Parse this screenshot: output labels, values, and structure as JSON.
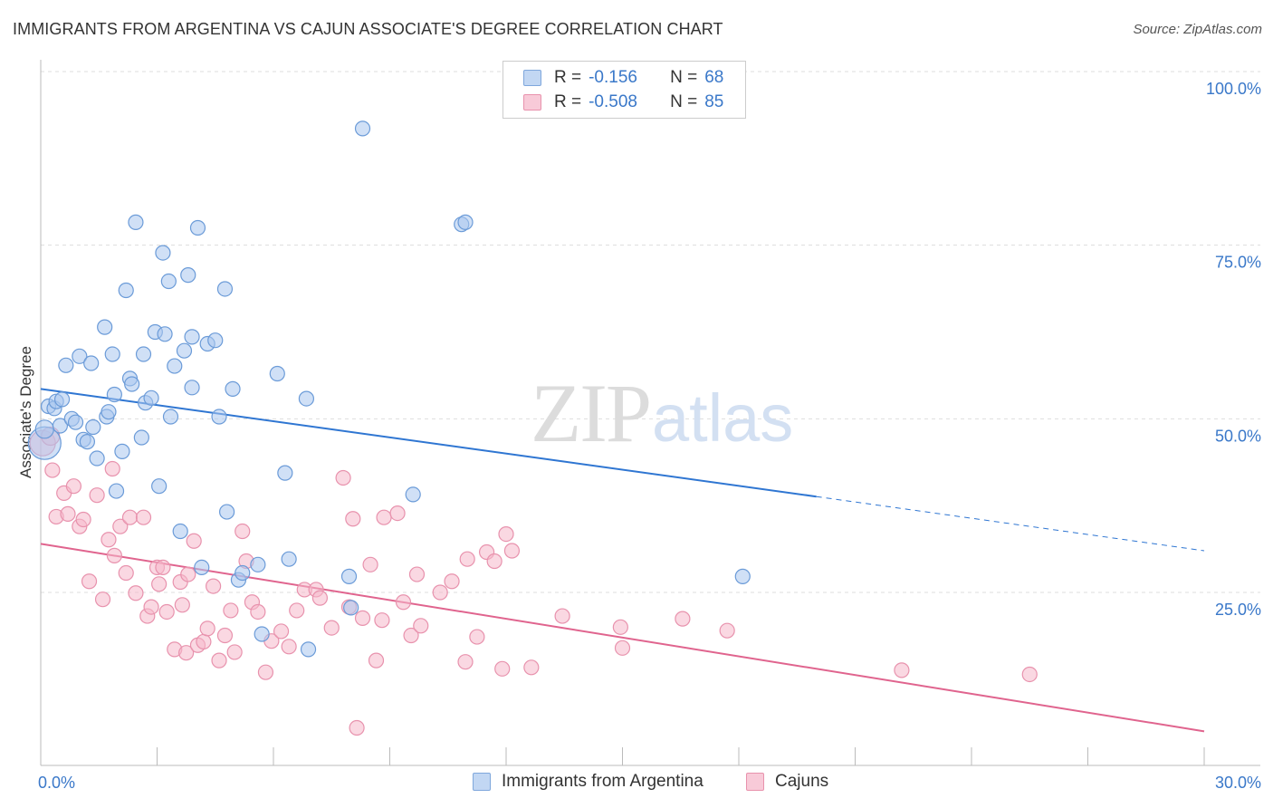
{
  "title": "IMMIGRANTS FROM ARGENTINA VS CAJUN ASSOCIATE'S DEGREE CORRELATION CHART",
  "source": "Source: ZipAtlas.com",
  "colors": {
    "blue_fill": "#a9c7ee",
    "blue_stroke": "#6b9bd8",
    "blue_line": "#2f76d2",
    "pink_fill": "#f5b8cb",
    "pink_stroke": "#e892ad",
    "pink_line": "#e0648e",
    "tick_label": "#3a78c9",
    "grid": "#dddddd"
  },
  "legend": {
    "r_label": "R =",
    "n_label": "N =",
    "series": [
      {
        "r": "-0.156",
        "n": "68"
      },
      {
        "r": "-0.508",
        "n": "85"
      }
    ]
  },
  "chart_data": {
    "type": "scatter",
    "title": "IMMIGRANTS FROM ARGENTINA VS CAJUN ASSOCIATE'S DEGREE CORRELATION CHART",
    "xlabel": "",
    "ylabel": "Associate's Degree",
    "xlim": [
      0,
      30
    ],
    "ylim": [
      0,
      105
    ],
    "x_tick_labels": [
      "0.0%",
      "30.0%"
    ],
    "y_ticks": [
      25,
      50,
      75,
      100
    ],
    "y_tick_labels": [
      "25.0%",
      "50.0%",
      "75.0%",
      "100.0%"
    ],
    "watermark": {
      "zip": "ZIP",
      "atlas": "atlas"
    },
    "series": [
      {
        "name": "Immigrants from Argentina",
        "color": "#a9c7ee",
        "trend": {
          "x0": 0,
          "y0": 54.3,
          "x1": 20,
          "y1": 38.8,
          "dash_to_x": 30,
          "dash_to_y": 31.0
        },
        "points": [
          [
            0.1,
            46.5,
            18
          ],
          [
            0.1,
            48.5,
            10
          ],
          [
            0.2,
            51.8,
            8
          ],
          [
            0.35,
            51.5,
            8
          ],
          [
            0.4,
            52.5,
            8
          ],
          [
            0.55,
            52.8,
            8
          ],
          [
            0.5,
            49.0,
            8
          ],
          [
            0.65,
            57.7,
            8
          ],
          [
            0.8,
            50.0,
            8
          ],
          [
            0.9,
            49.5,
            8
          ],
          [
            1.0,
            59.0,
            8
          ],
          [
            1.1,
            47.0,
            8
          ],
          [
            1.2,
            46.7,
            8
          ],
          [
            1.3,
            58.0,
            8
          ],
          [
            1.35,
            48.8,
            8
          ],
          [
            1.45,
            44.3,
            8
          ],
          [
            1.65,
            63.2,
            8
          ],
          [
            1.7,
            50.3,
            8
          ],
          [
            1.75,
            51.0,
            8
          ],
          [
            1.85,
            59.3,
            8
          ],
          [
            1.9,
            53.5,
            8
          ],
          [
            1.95,
            39.6,
            8
          ],
          [
            2.1,
            45.3,
            8
          ],
          [
            2.2,
            68.5,
            8
          ],
          [
            2.3,
            55.8,
            8
          ],
          [
            2.35,
            55.0,
            8
          ],
          [
            2.45,
            78.3,
            8
          ],
          [
            2.6,
            47.3,
            8
          ],
          [
            2.65,
            59.3,
            8
          ],
          [
            2.7,
            52.3,
            8
          ],
          [
            2.85,
            53.0,
            8
          ],
          [
            2.95,
            62.5,
            8
          ],
          [
            3.05,
            40.3,
            8
          ],
          [
            3.15,
            73.9,
            8
          ],
          [
            3.2,
            62.2,
            8
          ],
          [
            3.3,
            69.8,
            8
          ],
          [
            3.35,
            50.3,
            8
          ],
          [
            3.45,
            57.6,
            8
          ],
          [
            3.6,
            33.8,
            8
          ],
          [
            3.7,
            59.8,
            8
          ],
          [
            3.8,
            70.7,
            8
          ],
          [
            3.9,
            54.5,
            8
          ],
          [
            3.9,
            61.8,
            8
          ],
          [
            4.05,
            77.5,
            8
          ],
          [
            4.15,
            28.6,
            8
          ],
          [
            4.3,
            60.8,
            8
          ],
          [
            4.5,
            61.3,
            8
          ],
          [
            4.6,
            50.3,
            8
          ],
          [
            4.75,
            68.7,
            8
          ],
          [
            4.8,
            36.6,
            8
          ],
          [
            4.95,
            54.3,
            8
          ],
          [
            5.1,
            26.8,
            8
          ],
          [
            5.2,
            27.8,
            8
          ],
          [
            5.6,
            29.0,
            8
          ],
          [
            5.7,
            19.0,
            8
          ],
          [
            6.1,
            56.5,
            8
          ],
          [
            6.3,
            42.2,
            8
          ],
          [
            6.4,
            29.8,
            8
          ],
          [
            6.85,
            52.9,
            8
          ],
          [
            6.9,
            16.8,
            8
          ],
          [
            7.95,
            27.3,
            8
          ],
          [
            8.0,
            22.8,
            8
          ],
          [
            8.3,
            91.8,
            8
          ],
          [
            9.6,
            39.1,
            8
          ],
          [
            10.85,
            78.0,
            8
          ],
          [
            10.95,
            78.3,
            8
          ],
          [
            18.1,
            27.3,
            8
          ]
        ]
      },
      {
        "name": "Cajuns",
        "color": "#f5b8cb",
        "trend": {
          "x0": 0,
          "y0": 32.0,
          "x1": 30,
          "y1": 5.0
        },
        "points": [
          [
            0.05,
            46.5,
            14
          ],
          [
            0.25,
            47.5,
            10
          ],
          [
            0.3,
            42.6,
            8
          ],
          [
            0.4,
            35.9,
            8
          ],
          [
            0.6,
            39.3,
            8
          ],
          [
            0.7,
            36.3,
            8
          ],
          [
            0.85,
            40.3,
            8
          ],
          [
            1.0,
            34.5,
            8
          ],
          [
            1.1,
            35.5,
            8
          ],
          [
            1.25,
            26.6,
            8
          ],
          [
            1.45,
            39.0,
            8
          ],
          [
            1.6,
            24.0,
            8
          ],
          [
            1.75,
            32.6,
            8
          ],
          [
            1.85,
            42.8,
            8
          ],
          [
            1.9,
            30.3,
            8
          ],
          [
            2.05,
            34.5,
            8
          ],
          [
            2.2,
            27.8,
            8
          ],
          [
            2.3,
            35.8,
            8
          ],
          [
            2.45,
            24.9,
            8
          ],
          [
            2.65,
            35.8,
            8
          ],
          [
            2.75,
            21.6,
            8
          ],
          [
            2.85,
            22.9,
            8
          ],
          [
            3.0,
            28.6,
            8
          ],
          [
            3.05,
            26.2,
            8
          ],
          [
            3.15,
            28.6,
            8
          ],
          [
            3.25,
            22.2,
            8
          ],
          [
            3.45,
            16.8,
            8
          ],
          [
            3.6,
            26.5,
            8
          ],
          [
            3.65,
            23.2,
            8
          ],
          [
            3.75,
            16.3,
            8
          ],
          [
            3.8,
            27.6,
            8
          ],
          [
            3.95,
            32.4,
            8
          ],
          [
            4.05,
            17.4,
            8
          ],
          [
            4.2,
            17.9,
            8
          ],
          [
            4.3,
            19.8,
            8
          ],
          [
            4.45,
            25.9,
            8
          ],
          [
            4.6,
            15.2,
            8
          ],
          [
            4.75,
            18.8,
            8
          ],
          [
            4.9,
            22.4,
            8
          ],
          [
            5.0,
            16.4,
            8
          ],
          [
            5.2,
            33.8,
            8
          ],
          [
            5.3,
            29.5,
            8
          ],
          [
            5.45,
            23.6,
            8
          ],
          [
            5.6,
            22.2,
            8
          ],
          [
            5.8,
            13.5,
            8
          ],
          [
            5.95,
            18.0,
            8
          ],
          [
            6.2,
            19.4,
            8
          ],
          [
            6.4,
            17.2,
            8
          ],
          [
            6.6,
            22.4,
            8
          ],
          [
            6.8,
            25.4,
            8
          ],
          [
            7.1,
            25.4,
            8
          ],
          [
            7.2,
            24.2,
            8
          ],
          [
            7.5,
            19.9,
            8
          ],
          [
            7.8,
            41.5,
            8
          ],
          [
            7.95,
            22.9,
            8
          ],
          [
            8.05,
            35.6,
            8
          ],
          [
            8.15,
            5.5,
            8
          ],
          [
            8.3,
            21.3,
            8
          ],
          [
            8.5,
            29.0,
            8
          ],
          [
            8.65,
            15.2,
            8
          ],
          [
            8.8,
            21.0,
            8
          ],
          [
            8.85,
            35.8,
            8
          ],
          [
            9.2,
            36.4,
            8
          ],
          [
            9.35,
            23.6,
            8
          ],
          [
            9.55,
            18.8,
            8
          ],
          [
            9.7,
            27.6,
            8
          ],
          [
            9.8,
            20.2,
            8
          ],
          [
            10.3,
            25.0,
            8
          ],
          [
            10.6,
            26.6,
            8
          ],
          [
            10.95,
            15.0,
            8
          ],
          [
            11.0,
            29.8,
            8
          ],
          [
            11.25,
            18.6,
            8
          ],
          [
            11.5,
            30.8,
            8
          ],
          [
            11.7,
            29.5,
            8
          ],
          [
            11.9,
            14.0,
            8
          ],
          [
            12.0,
            33.4,
            8
          ],
          [
            12.15,
            31.0,
            8
          ],
          [
            12.65,
            14.2,
            8
          ],
          [
            13.45,
            21.6,
            8
          ],
          [
            14.95,
            20.0,
            8
          ],
          [
            15.0,
            17.0,
            8
          ],
          [
            16.55,
            21.2,
            8
          ],
          [
            17.7,
            19.5,
            8
          ],
          [
            22.2,
            13.8,
            8
          ],
          [
            25.5,
            13.2,
            8
          ]
        ]
      }
    ]
  }
}
